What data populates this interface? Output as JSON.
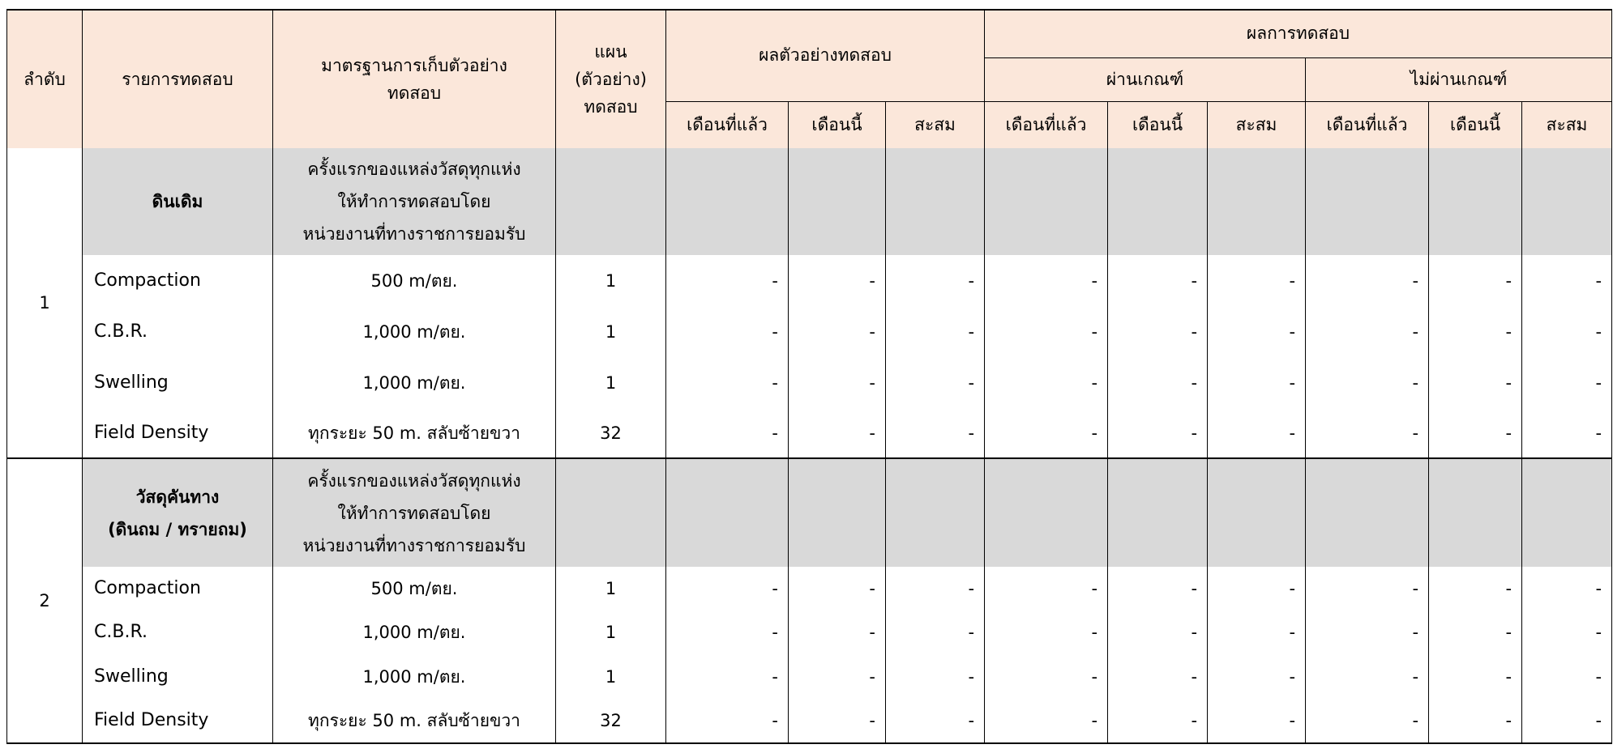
{
  "header": {
    "no": "ลำดับ",
    "item": "รายการทดสอบ",
    "standard": [
      "มาตรฐานการเก็บตัวอย่าง",
      "ทดสอบ"
    ],
    "plan": [
      "แผน",
      "(ตัวอย่าง)",
      "ทดสอบ"
    ],
    "samples": "ผลตัวอย่างทดสอบ",
    "results": "ผลการทดสอบ",
    "pass": "ผ่านเกณฑ์",
    "fail": "ไม่ผ่านเกณฑ์",
    "periods": [
      "เดือนที่แล้ว",
      "เดือนนี้",
      "สะสม"
    ]
  },
  "colors": {
    "header_bg": "#fbe7da",
    "group_bg": "#d9d9d9"
  },
  "groups": [
    {
      "no": "1",
      "name": [
        "ดินเดิม"
      ],
      "standard": [
        "ครั้งแรกของแหล่งวัสดุทุกแห่ง",
        "ให้ทำการทดสอบโดย",
        "หน่วยงานที่ทางราชการยอมรับ"
      ],
      "tests": [
        {
          "name": "Compaction",
          "standard": "500 m/ตย.",
          "plan": "1",
          "values": [
            "-",
            "-",
            "-",
            "-",
            "-",
            "-",
            "-",
            "-",
            "-"
          ]
        },
        {
          "name": "C.B.R.",
          "standard": "1,000 m/ตย.",
          "plan": "1",
          "values": [
            "-",
            "-",
            "-",
            "-",
            "-",
            "-",
            "-",
            "-",
            "-"
          ]
        },
        {
          "name": "Swelling",
          "standard": "1,000 m/ตย.",
          "plan": "1",
          "values": [
            "-",
            "-",
            "-",
            "-",
            "-",
            "-",
            "-",
            "-",
            "-"
          ]
        },
        {
          "name": "Field Density",
          "standard": "ทุกระยะ 50 m. สลับซ้ายขวา",
          "plan": "32",
          "values": [
            "-",
            "-",
            "-",
            "-",
            "-",
            "-",
            "-",
            "-",
            "-"
          ]
        }
      ]
    },
    {
      "no": "2",
      "name": [
        "วัสดุคันทาง",
        "(ดินถม / ทรายถม)"
      ],
      "standard": [
        "ครั้งแรกของแหล่งวัสดุทุกแห่ง",
        "ให้ทำการทดสอบโดย",
        "หน่วยงานที่ทางราชการยอมรับ"
      ],
      "tests": [
        {
          "name": "Compaction",
          "standard": "500 m/ตย.",
          "plan": "1",
          "values": [
            "-",
            "-",
            "-",
            "-",
            "-",
            "-",
            "-",
            "-",
            "-"
          ]
        },
        {
          "name": "C.B.R.",
          "standard": "1,000 m/ตย.",
          "plan": "1",
          "values": [
            "-",
            "-",
            "-",
            "-",
            "-",
            "-",
            "-",
            "-",
            "-"
          ]
        },
        {
          "name": "Swelling",
          "standard": "1,000 m/ตย.",
          "plan": "1",
          "values": [
            "-",
            "-",
            "-",
            "-",
            "-",
            "-",
            "-",
            "-",
            "-"
          ]
        },
        {
          "name": "Field Density",
          "standard": "ทุกระยะ 50 m. สลับซ้ายขวา",
          "plan": "32",
          "values": [
            "-",
            "-",
            "-",
            "-",
            "-",
            "-",
            "-",
            "-",
            "-"
          ]
        }
      ]
    }
  ]
}
